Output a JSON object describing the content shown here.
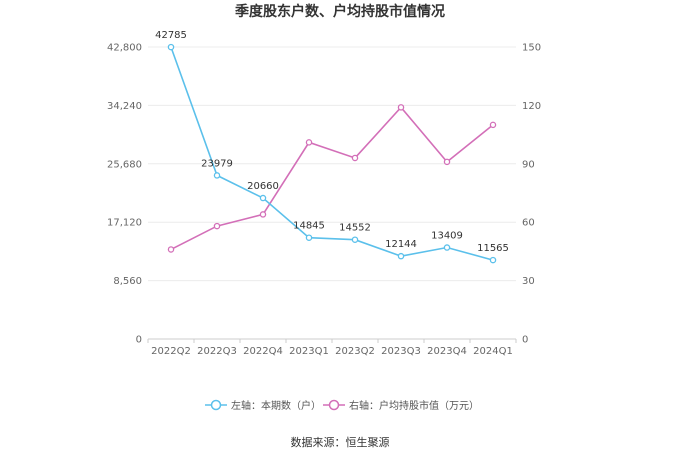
{
  "chart_data": {
    "type": "line",
    "title": "季度股东户数、户均持股市值情况",
    "categories": [
      "2022Q2",
      "2022Q3",
      "2022Q4",
      "2023Q1",
      "2023Q2",
      "2023Q3",
      "2023Q4",
      "2024Q1"
    ],
    "left_axis": {
      "ticks": [
        "0",
        "8,560",
        "17,120",
        "25,680",
        "34,240",
        "42,800"
      ],
      "ylim": [
        0,
        42800
      ]
    },
    "right_axis": {
      "ticks": [
        "0",
        "30",
        "60",
        "90",
        "120",
        "150"
      ],
      "ylim": [
        0,
        150
      ]
    },
    "series": [
      {
        "name": "左轴：本期数（户）",
        "axis": "left",
        "color": "#5bc0eb",
        "values": [
          42785,
          23979,
          20660,
          14845,
          14552,
          12144,
          13409,
          11565
        ],
        "labels": [
          "42785",
          "23979",
          "20660",
          "14845",
          "14552",
          "12144",
          "13409",
          "11565"
        ]
      },
      {
        "name": "右轴：户均持股市值（万元）",
        "axis": "right",
        "color": "#d36fb8",
        "values": [
          46,
          58,
          64,
          101,
          93,
          119,
          91,
          110
        ]
      }
    ],
    "grid": true,
    "legend_position": "bottom",
    "source": "数据来源：恒生聚源"
  }
}
